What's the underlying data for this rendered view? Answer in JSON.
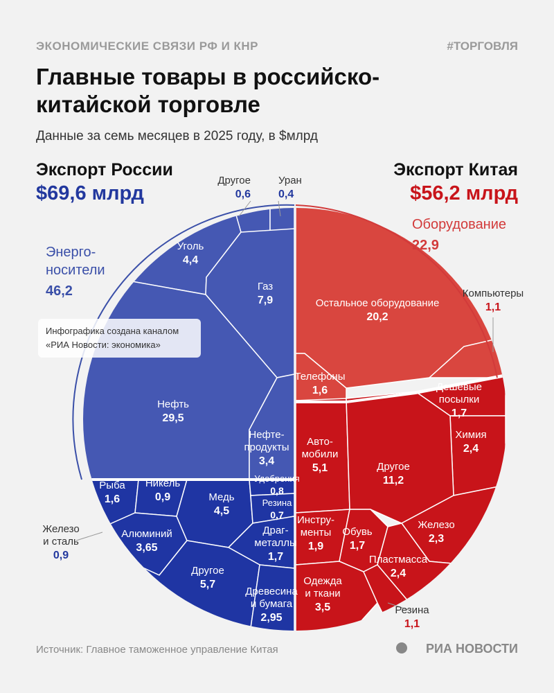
{
  "header": {
    "kicker": "ЭКОНОМИЧЕСКИЕ СВЯЗИ РФ И КНР",
    "tag": "#ТОРГОВЛЯ",
    "title_lines": [
      "Главные товары в российско-",
      "китайской торговле"
    ],
    "subtitle": "Данные за семь месяцев в 2025 году, в $млрд"
  },
  "russia": {
    "heading": "Экспорт России",
    "total": "$69,6 млрд",
    "group_lines": [
      "Энерго-",
      "носители"
    ],
    "group_value": "46,2"
  },
  "china": {
    "heading": "Экспорт Китая",
    "total": "$56,2 млрд",
    "group_label": "Оборудование",
    "group_value": "22,9"
  },
  "note": {
    "lines": [
      "Инфографика создана каналом",
      "«РИА Новости: экономика»"
    ]
  },
  "cells": [
    {
      "label": [
        "Другое"
      ],
      "value": "0,6"
    },
    {
      "label": [
        "Уран"
      ],
      "value": "0,4"
    },
    {
      "label": [
        "Уголь"
      ],
      "value": "4,4"
    },
    {
      "label": [
        "Газ"
      ],
      "value": "7,9"
    },
    {
      "label": [
        "Нефть"
      ],
      "value": "29,5"
    },
    {
      "label": [
        "Нефте-",
        "продукты"
      ],
      "value": "3,4"
    },
    {
      "label": [
        "Рыба"
      ],
      "value": "1,6"
    },
    {
      "label": [
        "Никель"
      ],
      "value": "0,9"
    },
    {
      "label": [
        "Железо",
        "и сталь"
      ],
      "value": "0,9"
    },
    {
      "label": [
        "Алюминий"
      ],
      "value": "3,65"
    },
    {
      "label": [
        "Медь"
      ],
      "value": "4,5"
    },
    {
      "label": [
        "Удобрения"
      ],
      "value": "0,8"
    },
    {
      "label": [
        "Резина"
      ],
      "value": "0,7"
    },
    {
      "label": [
        "Драг-",
        "металлы"
      ],
      "value": "1,7"
    },
    {
      "label": [
        "Другое"
      ],
      "value": "5,7"
    },
    {
      "label": [
        "Древесина",
        "и бумага"
      ],
      "value": "2,95"
    },
    {
      "label": [
        "Остальное оборудование"
      ],
      "value": "20,2"
    },
    {
      "label": [
        "Компьютеры"
      ],
      "value": "1,1"
    },
    {
      "label": [
        "Телефоны"
      ],
      "value": "1,6"
    },
    {
      "label": [
        "Дешевые",
        "посылки"
      ],
      "value": "1,7"
    },
    {
      "label": [
        "Химия"
      ],
      "value": "2,4"
    },
    {
      "label": [
        "Авто-",
        "мобили"
      ],
      "value": "5,1"
    },
    {
      "label": [
        "Другое"
      ],
      "value": "11,2"
    },
    {
      "label": [
        "Железо"
      ],
      "value": "2,3"
    },
    {
      "label": [
        "Инстру-",
        "менты"
      ],
      "value": "1,9"
    },
    {
      "label": [
        "Обувь"
      ],
      "value": "1,7"
    },
    {
      "label": [
        "Пластмасса"
      ],
      "value": "2,4"
    },
    {
      "label": [
        "Одежда",
        "и ткани"
      ],
      "value": "3,5"
    },
    {
      "label": [
        "Резина"
      ],
      "value": "1,1"
    }
  ],
  "footer": {
    "source": "Источник: Главное таможенное управление Китая",
    "logo": "РИА НОВОСТИ"
  }
}
